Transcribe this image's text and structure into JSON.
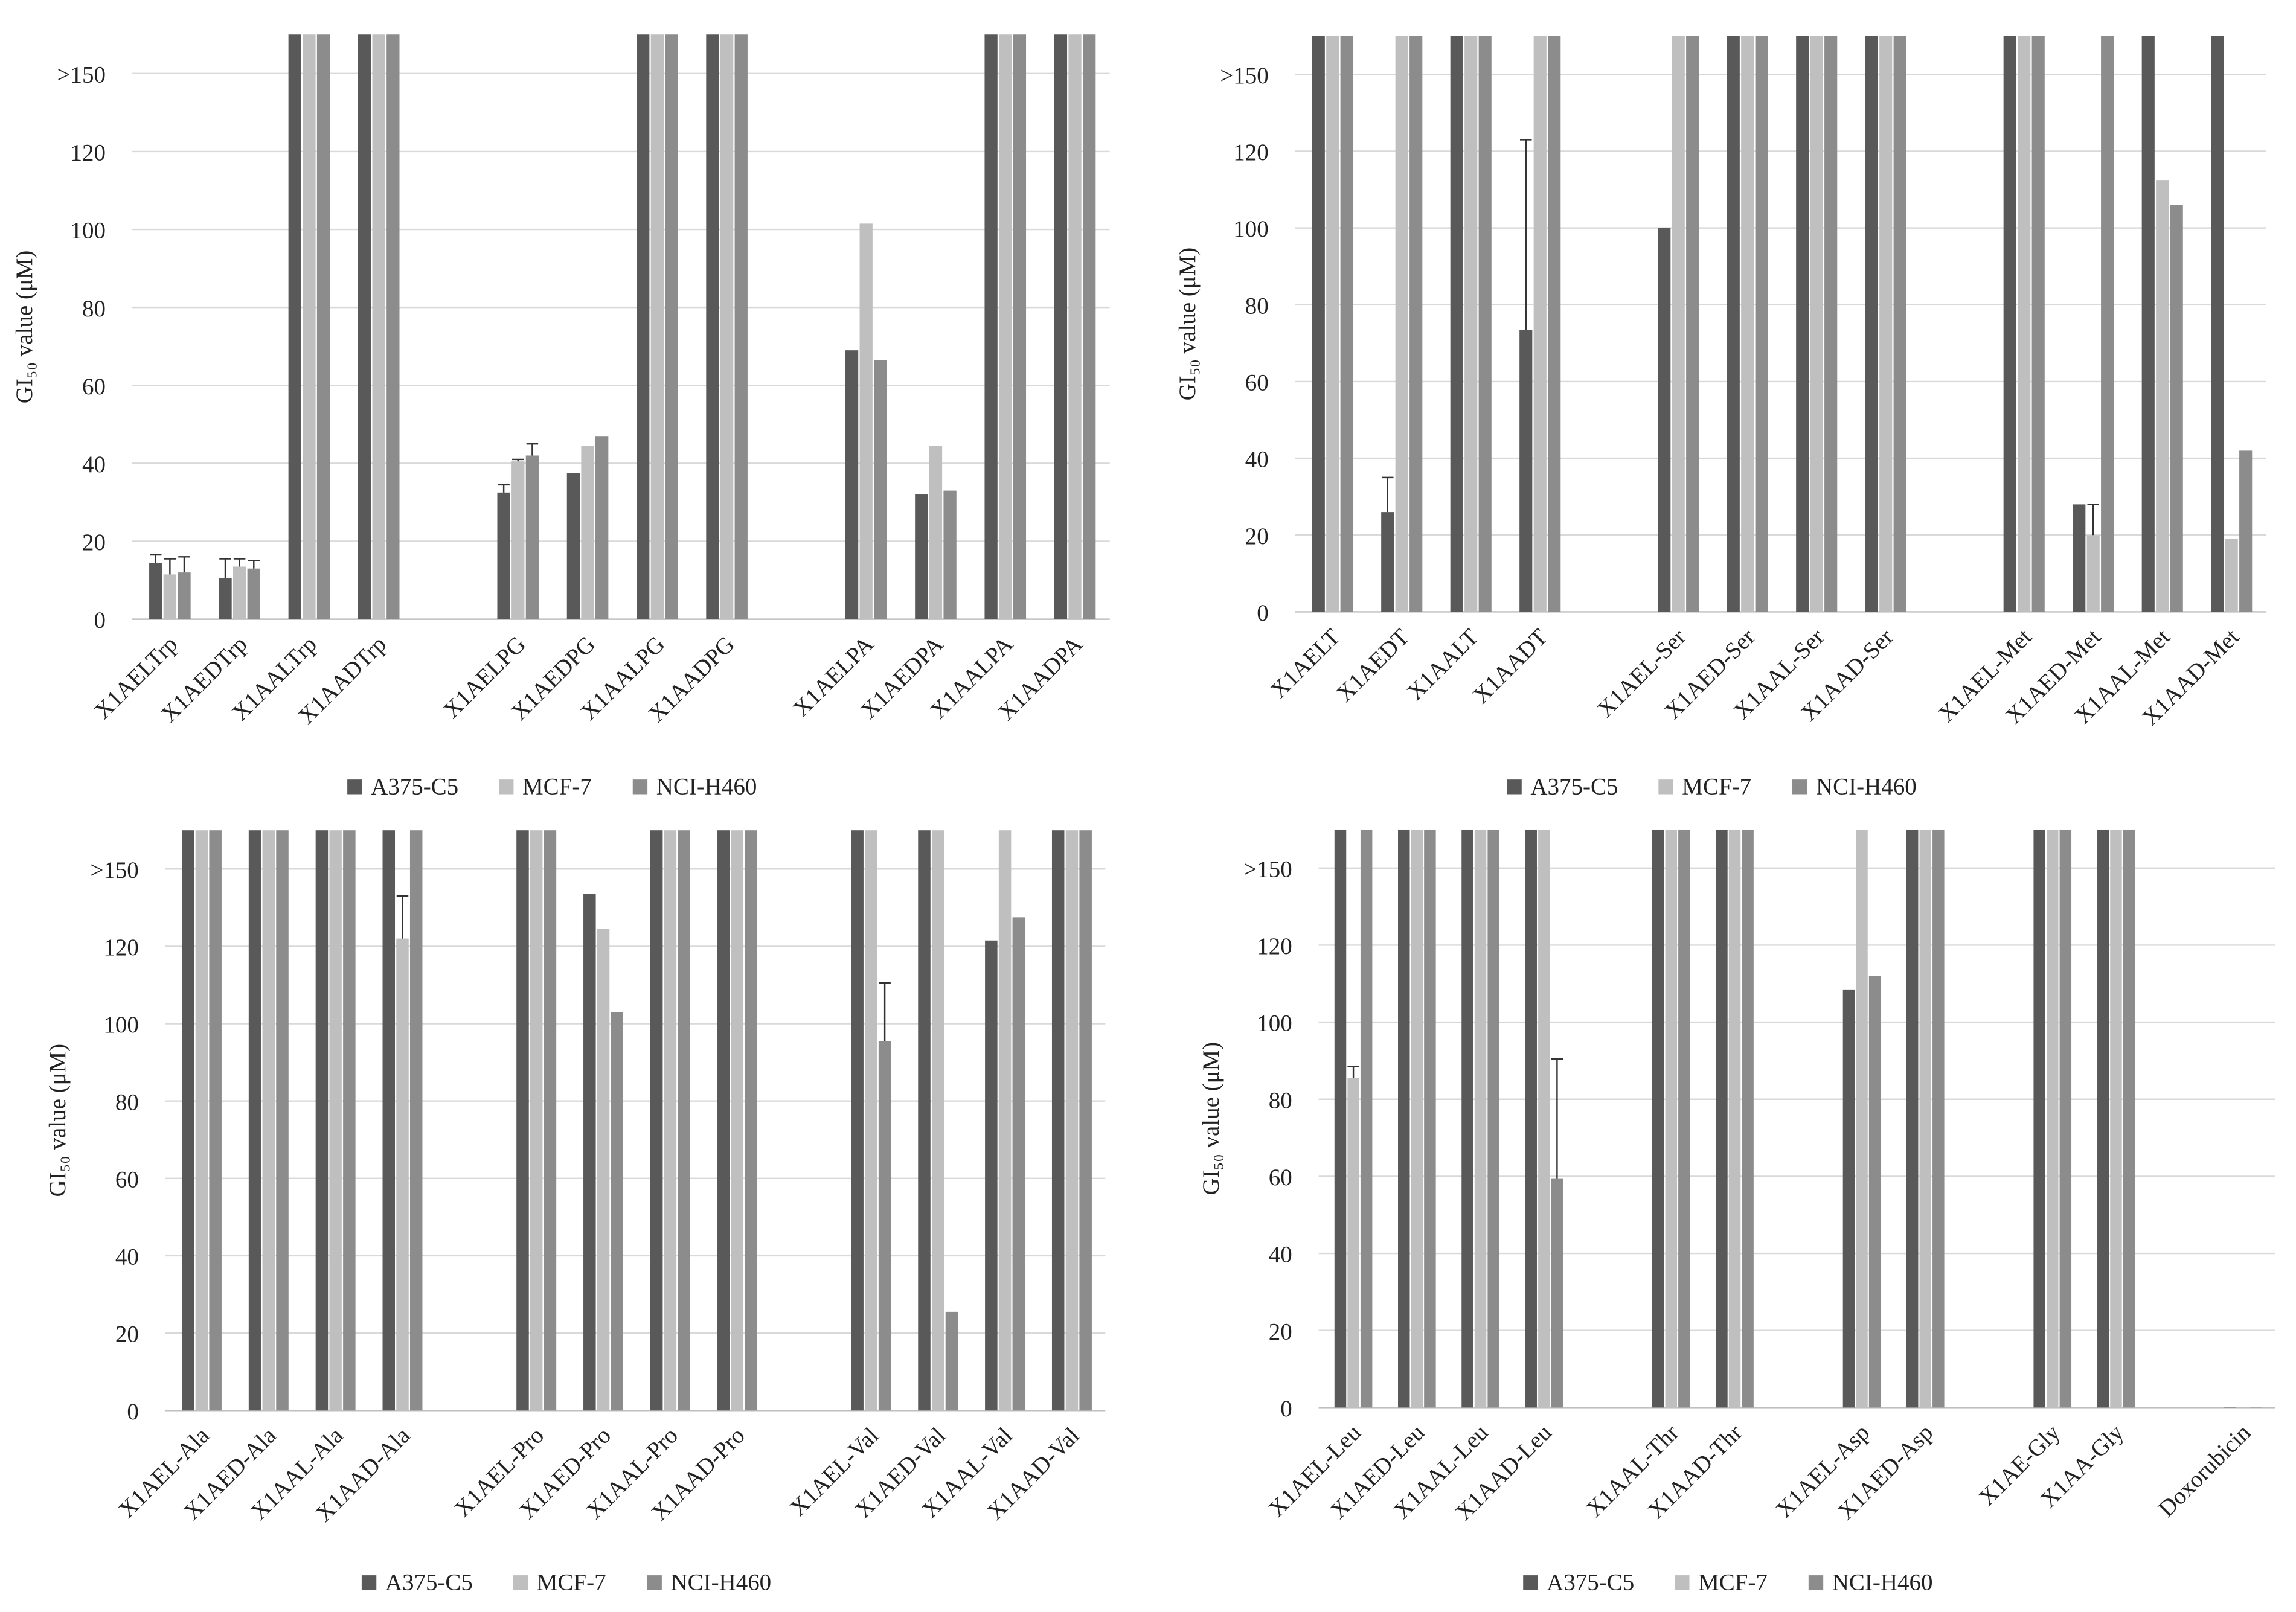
{
  "chart_data": [
    {
      "type": "bar",
      "ylabel": "GI₅₀ value (μM)",
      "grid": true,
      "legend": "bottom",
      "ylim": [
        0,
        150
      ],
      "yticks": [
        0,
        20,
        40,
        60,
        80,
        100,
        120,
        {
          "value": 140,
          "label": ">150"
        }
      ],
      "categories": [
        "X1AELTrp",
        "X1AEDTrp",
        "X1AALTrp",
        "X1AADTrp",
        null,
        "X1AELPG",
        "X1AEDPG",
        "X1AALPG",
        "X1AADPG",
        null,
        "X1AELPA",
        "X1AEDPA",
        "X1AALPA",
        "X1AADPA"
      ],
      "series": [
        {
          "name": "A375-C5",
          "color": "#595959",
          "values": [
            14.5,
            10.5,
            150,
            150,
            null,
            32.5,
            37.5,
            150,
            150,
            null,
            69,
            32,
            150,
            150
          ],
          "errors": [
            2,
            5,
            null,
            null,
            null,
            2,
            null,
            null,
            null,
            null,
            null,
            null,
            null,
            null
          ]
        },
        {
          "name": "MCF-7",
          "color": "#bfbfbf",
          "values": [
            11.5,
            13.5,
            150,
            150,
            null,
            40.5,
            44.5,
            150,
            150,
            null,
            101.5,
            44.5,
            150,
            150
          ],
          "errors": [
            4,
            2,
            null,
            null,
            null,
            0.5,
            null,
            null,
            null,
            null,
            null,
            null,
            null,
            null
          ]
        },
        {
          "name": "NCI-H460",
          "color": "#8c8c8c",
          "values": [
            12,
            13,
            150,
            150,
            null,
            42,
            47,
            150,
            150,
            null,
            66.5,
            33,
            150,
            150
          ],
          "errors": [
            4,
            2,
            null,
            null,
            null,
            3,
            null,
            null,
            null,
            null,
            null,
            null,
            null,
            null
          ]
        }
      ]
    },
    {
      "type": "bar",
      "ylabel": "GI₅₀ value (μM)",
      "grid": true,
      "legend": "bottom",
      "ylim": [
        0,
        150
      ],
      "yticks": [
        0,
        20,
        40,
        60,
        80,
        100,
        120,
        {
          "value": 140,
          "label": ">150"
        }
      ],
      "categories": [
        "X1AELT",
        "X1AEDT",
        "X1AALT",
        "X1AADT",
        null,
        "X1AEL-Ser",
        "X1AED-Ser",
        "X1AAL-Ser",
        "X1AAD-Ser",
        null,
        "X1AEL-Met",
        "X1AED-Met",
        "X1AAL-Met",
        "X1AAD-Met"
      ],
      "series": [
        {
          "name": "A375-C5",
          "color": "#595959",
          "values": [
            150,
            26,
            150,
            73.5,
            null,
            100,
            150,
            150,
            150,
            null,
            150,
            28,
            150,
            150
          ],
          "errors": [
            null,
            9,
            null,
            49.5,
            null,
            null,
            null,
            null,
            null,
            null,
            null,
            null,
            null,
            null
          ]
        },
        {
          "name": "MCF-7",
          "color": "#bfbfbf",
          "values": [
            150,
            150,
            150,
            150,
            null,
            150,
            150,
            150,
            150,
            null,
            150,
            20,
            112.5,
            19
          ],
          "errors": [
            null,
            null,
            null,
            null,
            null,
            null,
            null,
            null,
            null,
            null,
            null,
            8,
            null,
            null
          ]
        },
        {
          "name": "NCI-H460",
          "color": "#8c8c8c",
          "values": [
            150,
            150,
            150,
            150,
            null,
            150,
            150,
            150,
            150,
            null,
            150,
            150,
            106,
            42
          ],
          "errors": [
            null,
            null,
            null,
            null,
            null,
            null,
            null,
            null,
            null,
            null,
            null,
            null,
            null,
            null
          ]
        }
      ]
    },
    {
      "type": "bar",
      "ylabel": "GI₅₀ value (μM)",
      "grid": true,
      "legend": "bottom",
      "ylim": [
        0,
        150
      ],
      "yticks": [
        0,
        20,
        40,
        60,
        80,
        100,
        120,
        {
          "value": 140,
          "label": ">150"
        }
      ],
      "categories": [
        "X1AEL-Ala",
        "X1AED-Ala",
        "X1AAL-Ala",
        "X1AAD-Ala",
        null,
        "X1AEL-Pro",
        "X1AED-Pro",
        "X1AAL-Pro",
        "X1AAD-Pro",
        null,
        "X1AEL-Val",
        "X1AED-Val",
        "X1AAL-Val",
        "X1AAD-Val"
      ],
      "series": [
        {
          "name": "A375-C5",
          "color": "#595959",
          "values": [
            150,
            150,
            150,
            150,
            null,
            150,
            133.5,
            150,
            150,
            null,
            150,
            150,
            121.5,
            150
          ],
          "errors": [
            null,
            null,
            null,
            null,
            null,
            null,
            null,
            null,
            null,
            null,
            null,
            null,
            null,
            null
          ]
        },
        {
          "name": "MCF-7",
          "color": "#bfbfbf",
          "values": [
            150,
            150,
            150,
            122,
            null,
            150,
            124.5,
            150,
            150,
            null,
            150,
            150,
            150,
            150
          ],
          "errors": [
            null,
            null,
            null,
            11,
            null,
            null,
            null,
            null,
            null,
            null,
            null,
            null,
            null,
            null
          ]
        },
        {
          "name": "NCI-H460",
          "color": "#8c8c8c",
          "values": [
            150,
            150,
            150,
            150,
            null,
            150,
            103,
            150,
            150,
            null,
            95.5,
            25.5,
            127.5,
            150
          ],
          "errors": [
            null,
            null,
            null,
            null,
            null,
            null,
            null,
            null,
            null,
            null,
            15,
            null,
            null,
            null
          ]
        }
      ]
    },
    {
      "type": "bar",
      "ylabel": "GI₅₀ value (μM)",
      "grid": true,
      "legend": "bottom",
      "ylim": [
        0,
        150
      ],
      "yticks": [
        0,
        20,
        40,
        60,
        80,
        100,
        120,
        {
          "value": 140,
          "label": ">150"
        }
      ],
      "categories": [
        "X1AEL-Leu",
        "X1AED-Leu",
        "X1AAL-Leu",
        "X1AAD-Leu",
        null,
        "X1AAL-Thr",
        "X1AAD-Thr",
        null,
        "X1AEL-Asp",
        "X1AED-Asp",
        null,
        "X1AE-Gly",
        "X1AA-Gly",
        null,
        "Doxorubicin"
      ],
      "series": [
        {
          "name": "A375-C5",
          "color": "#595959",
          "values": [
            150,
            150,
            150,
            150,
            null,
            150,
            150,
            null,
            108.5,
            150,
            null,
            150,
            150,
            null,
            0.2
          ],
          "errors": [
            null,
            null,
            null,
            null,
            null,
            null,
            null,
            null,
            null,
            null,
            null,
            null,
            null,
            null,
            null
          ]
        },
        {
          "name": "MCF-7",
          "color": "#bfbfbf",
          "values": [
            85.5,
            150,
            150,
            150,
            null,
            150,
            150,
            null,
            150,
            150,
            null,
            150,
            150,
            null,
            0.2
          ],
          "errors": [
            3,
            null,
            null,
            null,
            null,
            null,
            null,
            null,
            null,
            null,
            null,
            null,
            null,
            null,
            null
          ]
        },
        {
          "name": "NCI-H460",
          "color": "#8c8c8c",
          "values": [
            150,
            150,
            150,
            59.5,
            null,
            150,
            150,
            null,
            112,
            150,
            null,
            150,
            150,
            null,
            0.2
          ],
          "errors": [
            null,
            null,
            null,
            31,
            null,
            null,
            null,
            null,
            null,
            null,
            null,
            null,
            null,
            null,
            null
          ]
        }
      ]
    }
  ]
}
